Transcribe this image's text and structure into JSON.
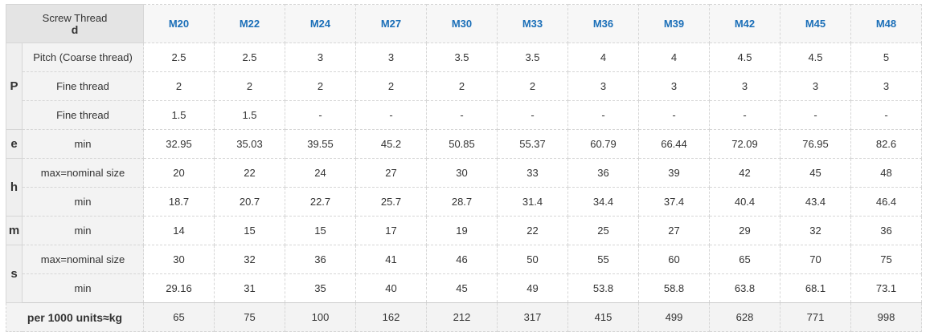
{
  "header": {
    "title": "Screw Thread",
    "subtitle": "d",
    "columns": [
      "M20",
      "M22",
      "M24",
      "M27",
      "M30",
      "M33",
      "M36",
      "M39",
      "M42",
      "M45",
      "M48"
    ]
  },
  "groups": [
    {
      "symbol": "P",
      "rows": [
        {
          "label": "Pitch (Coarse thread)",
          "values": [
            "2.5",
            "2.5",
            "3",
            "3",
            "3.5",
            "3.5",
            "4",
            "4",
            "4.5",
            "4.5",
            "5"
          ]
        },
        {
          "label": "Fine thread",
          "values": [
            "2",
            "2",
            "2",
            "2",
            "2",
            "2",
            "3",
            "3",
            "3",
            "3",
            "3"
          ]
        },
        {
          "label": "Fine thread",
          "values": [
            "1.5",
            "1.5",
            "-",
            "-",
            "-",
            "-",
            "-",
            "-",
            "-",
            "-",
            "-"
          ]
        }
      ]
    },
    {
      "symbol": "e",
      "rows": [
        {
          "label": "min",
          "values": [
            "32.95",
            "35.03",
            "39.55",
            "45.2",
            "50.85",
            "55.37",
            "60.79",
            "66.44",
            "72.09",
            "76.95",
            "82.6"
          ]
        }
      ]
    },
    {
      "symbol": "h",
      "rows": [
        {
          "label": "max=nominal size",
          "values": [
            "20",
            "22",
            "24",
            "27",
            "30",
            "33",
            "36",
            "39",
            "42",
            "45",
            "48"
          ]
        },
        {
          "label": "min",
          "values": [
            "18.7",
            "20.7",
            "22.7",
            "25.7",
            "28.7",
            "31.4",
            "34.4",
            "37.4",
            "40.4",
            "43.4",
            "46.4"
          ]
        }
      ]
    },
    {
      "symbol": "m",
      "rows": [
        {
          "label": "min",
          "values": [
            "14",
            "15",
            "15",
            "17",
            "19",
            "22",
            "25",
            "27",
            "29",
            "32",
            "36"
          ]
        }
      ]
    },
    {
      "symbol": "s",
      "rows": [
        {
          "label": "max=nominal size",
          "values": [
            "30",
            "32",
            "36",
            "41",
            "46",
            "50",
            "55",
            "60",
            "65",
            "70",
            "75"
          ]
        },
        {
          "label": "min",
          "values": [
            "29.16",
            "31",
            "35",
            "40",
            "45",
            "49",
            "53.8",
            "58.8",
            "63.8",
            "68.1",
            "73.1"
          ]
        }
      ]
    }
  ],
  "footer": {
    "label": "per 1000 units≈kg",
    "values": [
      "65",
      "75",
      "100",
      "162",
      "212",
      "317",
      "415",
      "499",
      "628",
      "771",
      "998"
    ]
  }
}
